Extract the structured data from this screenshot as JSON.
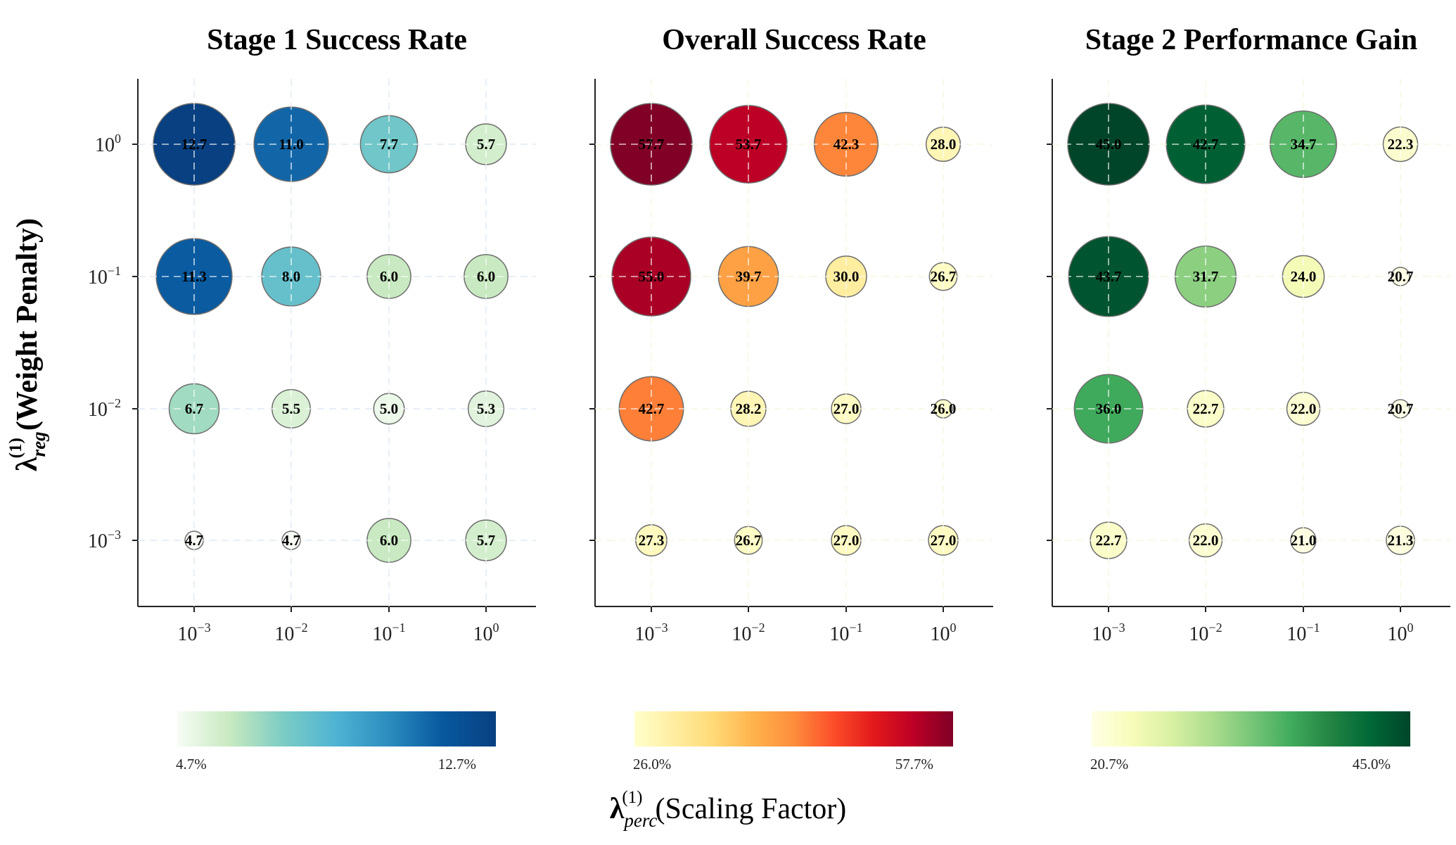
{
  "chart_data": [
    {
      "type": "bubble",
      "title": "Stage 1 Success Rate",
      "colormap": "blues",
      "colors": [
        "#f7fcf5",
        "#c7e9c0",
        "#7bccc4",
        "#4eb3d3",
        "#2b8cbe",
        "#08589e",
        "#084081"
      ],
      "x_ticks": [
        "10^-3",
        "10^-2",
        "10^-1",
        "10^0"
      ],
      "y_ticks": [
        "10^0",
        "10^-1",
        "10^-2",
        "10^-3"
      ],
      "values": [
        [
          12.7,
          11.0,
          7.7,
          5.7
        ],
        [
          11.3,
          8.0,
          6.0,
          6.0
        ],
        [
          6.7,
          5.5,
          5.0,
          5.3
        ],
        [
          4.7,
          4.7,
          6.0,
          5.7
        ]
      ],
      "value_labels": [
        [
          "12.7",
          "11.0",
          "7.7",
          "5.7"
        ],
        [
          "11.3",
          "8.0",
          "6.0",
          "6.0"
        ],
        [
          "6.7",
          "5.5",
          "5.0",
          "5.3"
        ],
        [
          "4.7",
          "4.7",
          "6.0",
          "5.7"
        ]
      ],
      "vmin": 4.7,
      "vmax": 12.7,
      "colorbar_min_label": "4.7%",
      "colorbar_max_label": "12.7%",
      "grid_color": "#c6d8f0"
    },
    {
      "type": "bubble",
      "title": "Overall Success Rate",
      "colormap": "reds",
      "colors": [
        "#ffffcc",
        "#ffeda0",
        "#fed976",
        "#feb24c",
        "#fd8d3c",
        "#fc4e2a",
        "#e31a1c",
        "#bd0026",
        "#800026"
      ],
      "x_ticks": [
        "10^-3",
        "10^-2",
        "10^-1",
        "10^0"
      ],
      "y_ticks": [
        "10^0",
        "10^-1",
        "10^-2",
        "10^-3"
      ],
      "values": [
        [
          57.7,
          53.7,
          42.3,
          28.0
        ],
        [
          55.0,
          39.7,
          30.0,
          26.7
        ],
        [
          42.7,
          28.2,
          27.0,
          26.0
        ],
        [
          27.3,
          26.7,
          27.0,
          27.0
        ]
      ],
      "value_labels": [
        [
          "57.7",
          "53.7",
          "42.3",
          "28.0"
        ],
        [
          "55.0",
          "39.7",
          "30.0",
          "26.7"
        ],
        [
          "42.7",
          "28.2",
          "27.0",
          "26.0"
        ],
        [
          "27.3",
          "26.7",
          "27.0",
          "27.0"
        ]
      ],
      "vmin": 26.0,
      "vmax": 57.7,
      "colorbar_min_label": "26.0%",
      "colorbar_max_label": "57.7%",
      "grid_color": "#eef3c8"
    },
    {
      "type": "bubble",
      "title": "Stage 2 Performance Gain",
      "colormap": "greens",
      "colors": [
        "#ffffe5",
        "#f7fcb9",
        "#d9f0a3",
        "#addd8e",
        "#78c679",
        "#41ab5d",
        "#238443",
        "#006837",
        "#004529"
      ],
      "x_ticks": [
        "10^-3",
        "10^-2",
        "10^-1",
        "10^0"
      ],
      "y_ticks": [
        "10^0",
        "10^-1",
        "10^-2",
        "10^-3"
      ],
      "values": [
        [
          45.0,
          42.7,
          34.7,
          22.3
        ],
        [
          43.7,
          31.7,
          24.0,
          20.7
        ],
        [
          36.0,
          22.7,
          22.0,
          20.7
        ],
        [
          22.7,
          22.0,
          21.0,
          21.3
        ]
      ],
      "value_labels": [
        [
          "45.0",
          "42.7",
          "34.7",
          "22.3"
        ],
        [
          "43.7",
          "31.7",
          "24.0",
          "20.7"
        ],
        [
          "36.0",
          "22.7",
          "22.0",
          "20.7"
        ],
        [
          "22.7",
          "22.0",
          "21.0",
          "21.3"
        ]
      ],
      "vmin": 20.7,
      "vmax": 45.0,
      "colorbar_min_label": "20.7%",
      "colorbar_max_label": "45.0%",
      "grid_color": "#eaf4c8"
    }
  ],
  "axes": {
    "xlabel_symbol": "λ",
    "xlabel_superscript": "(1)",
    "xlabel_subscript": "perc",
    "xlabel_text": "(Scaling Factor)",
    "ylabel_symbol": "λ",
    "ylabel_superscript": "(1)",
    "ylabel_subscript": "reg",
    "ylabel_text": "(Weight Penalty)"
  }
}
